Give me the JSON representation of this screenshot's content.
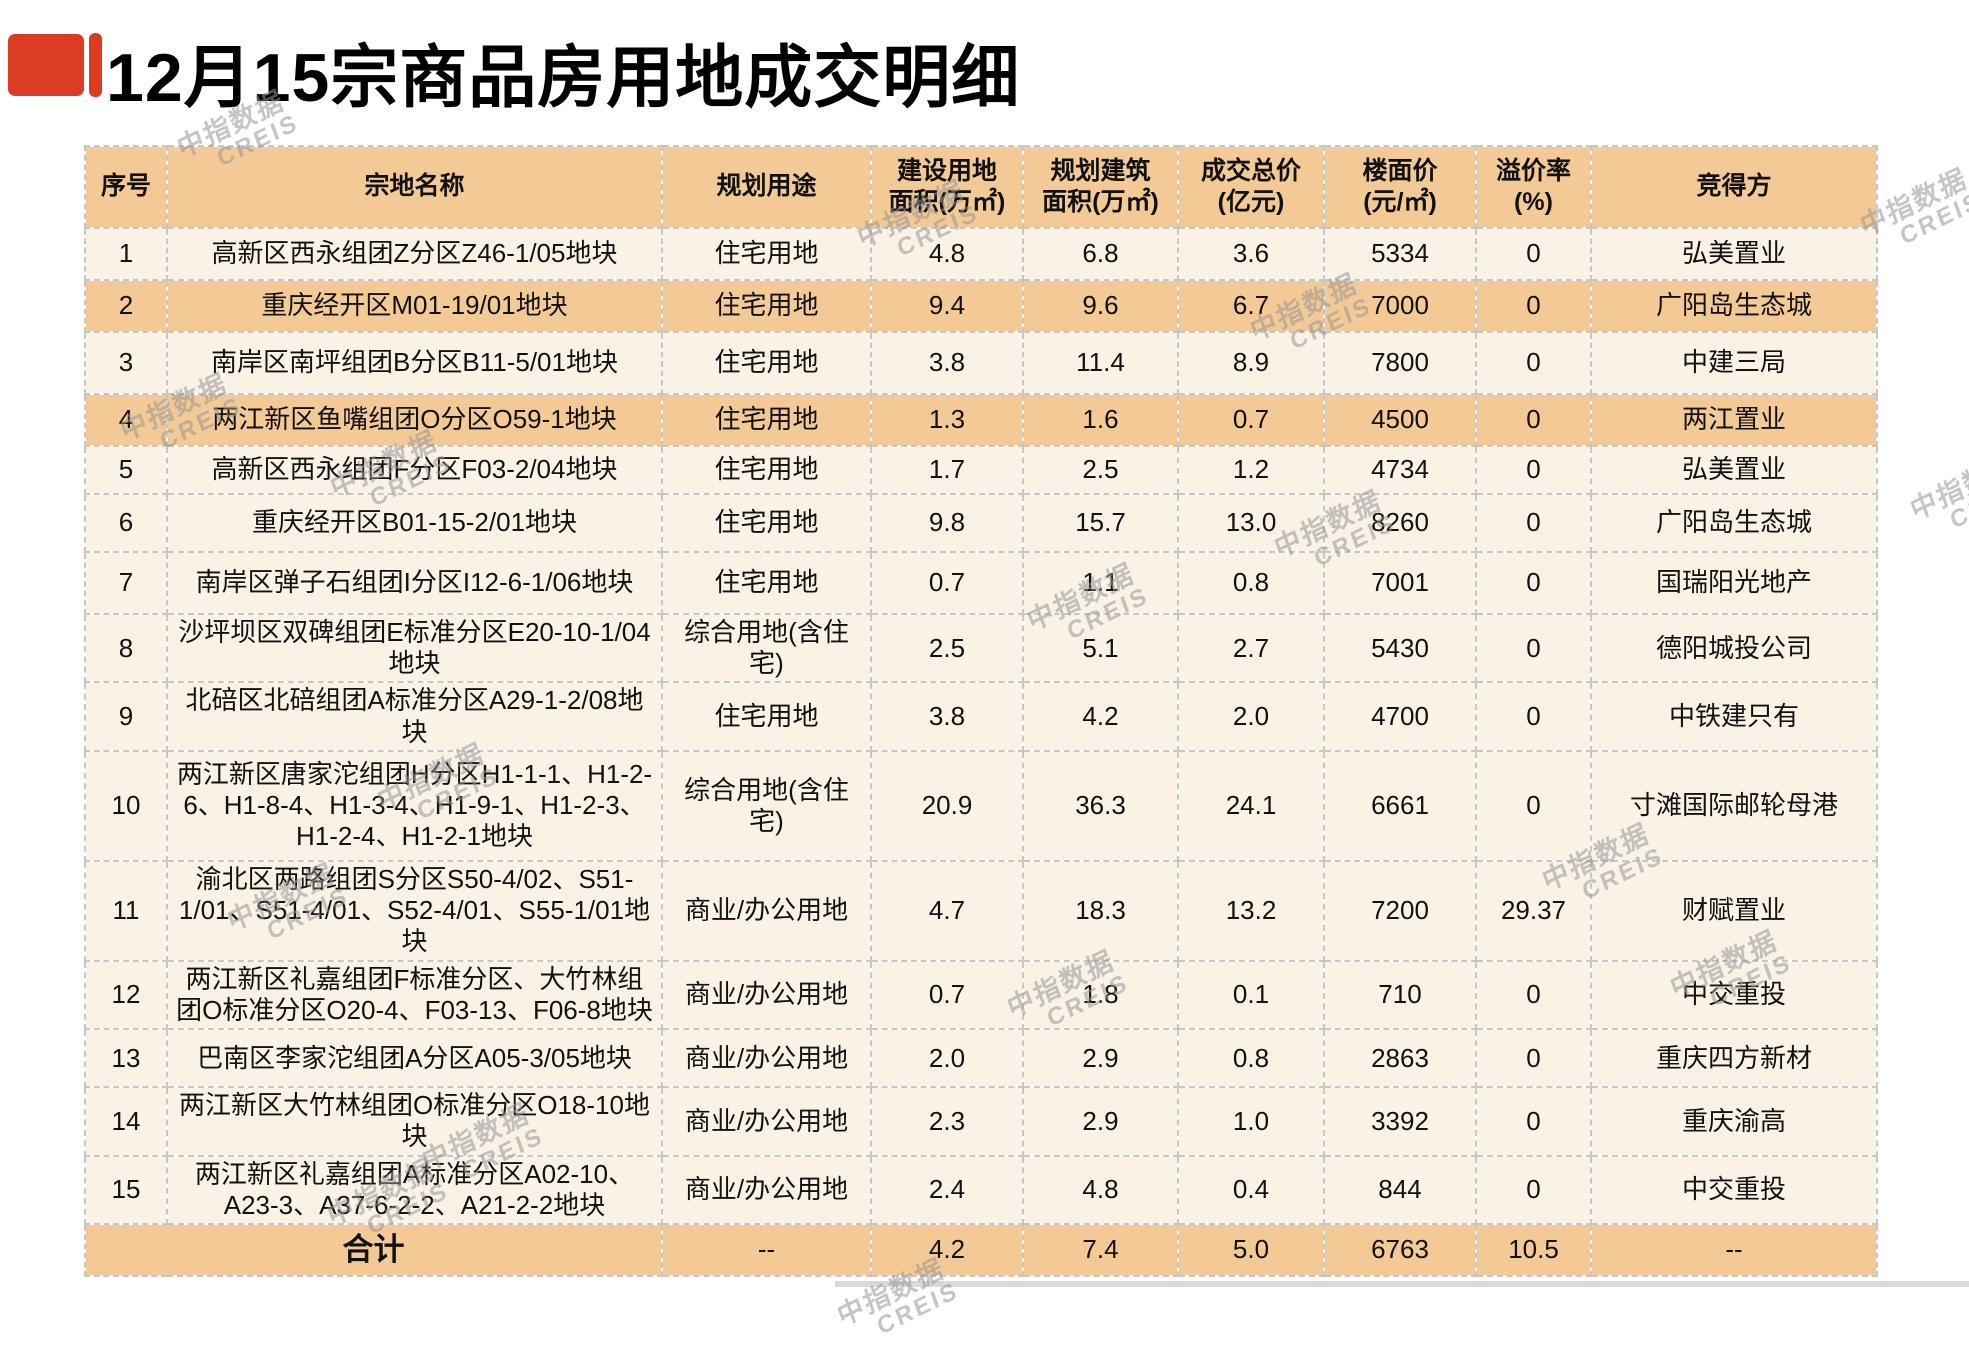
{
  "title": "12月15宗商品房用地成交明细",
  "watermark": {
    "line1": "中指数据",
    "line2": "CREIS"
  },
  "colors": {
    "accent_red": "#dc3c22",
    "header_bg": "#f3ca96",
    "row_light_bg": "#fbf2e6",
    "row_highlight_bg": "#f3ca96",
    "border_dash": "#c7c7c7",
    "bottom_bar": "#d9d9d9",
    "text": "#111111"
  },
  "table": {
    "columns": [
      "序号",
      "宗地名称",
      "规划用途",
      "建设用地\n面积(万㎡)",
      "规划建筑\n面积(万㎡)",
      "成交总价\n(亿元)",
      "楼面价\n(元/㎡)",
      "溢价率\n(%)",
      "竞得方"
    ],
    "rows": [
      {
        "no": "1",
        "name": "高新区西永组团Z分区Z46-1/05地块",
        "use": "住宅用地",
        "land_area": "4.8",
        "build_area": "6.8",
        "price": "3.6",
        "floor_price": "5334",
        "premium": "0",
        "winner": "弘美置业",
        "highlight": false
      },
      {
        "no": "2",
        "name": "重庆经开区M01-19/01地块",
        "use": "住宅用地",
        "land_area": "9.4",
        "build_area": "9.6",
        "price": "6.7",
        "floor_price": "7000",
        "premium": "0",
        "winner": "广阳岛生态城",
        "highlight": true
      },
      {
        "no": "3",
        "name": "南岸区南坪组团B分区B11-5/01地块",
        "use": "住宅用地",
        "land_area": "3.8",
        "build_area": "11.4",
        "price": "8.9",
        "floor_price": "7800",
        "premium": "0",
        "winner": "中建三局",
        "highlight": false
      },
      {
        "no": "4",
        "name": "两江新区鱼嘴组团O分区O59-1地块",
        "use": "住宅用地",
        "land_area": "1.3",
        "build_area": "1.6",
        "price": "0.7",
        "floor_price": "4500",
        "premium": "0",
        "winner": "两江置业",
        "highlight": true
      },
      {
        "no": "5",
        "name": "高新区西永组团F分区F03-2/04地块",
        "use": "住宅用地",
        "land_area": "1.7",
        "build_area": "2.5",
        "price": "1.2",
        "floor_price": "4734",
        "premium": "0",
        "winner": "弘美置业",
        "highlight": false
      },
      {
        "no": "6",
        "name": "重庆经开区B01-15-2/01地块",
        "use": "住宅用地",
        "land_area": "9.8",
        "build_area": "15.7",
        "price": "13.0",
        "floor_price": "8260",
        "premium": "0",
        "winner": "广阳岛生态城",
        "highlight": false
      },
      {
        "no": "7",
        "name": "南岸区弹子石组团I分区I12-6-1/06地块",
        "use": "住宅用地",
        "land_area": "0.7",
        "build_area": "1.1",
        "price": "0.8",
        "floor_price": "7001",
        "premium": "0",
        "winner": "国瑞阳光地产",
        "highlight": false
      },
      {
        "no": "8",
        "name": "沙坪坝区双碑组团E标准分区E20-10-1/04地块",
        "use": "综合用地(含住宅)",
        "land_area": "2.5",
        "build_area": "5.1",
        "price": "2.7",
        "floor_price": "5430",
        "premium": "0",
        "winner": "德阳城投公司",
        "highlight": false
      },
      {
        "no": "9",
        "name": "北碚区北碚组团A标准分区A29-1-2/08地块",
        "use": "住宅用地",
        "land_area": "3.8",
        "build_area": "4.2",
        "price": "2.0",
        "floor_price": "4700",
        "premium": "0",
        "winner": "中铁建只有",
        "highlight": false
      },
      {
        "no": "10",
        "name": "两江新区唐家沱组团H分区H1-1-1、H1-2-6、H1-8-4、H1-3-4、H1-9-1、H1-2-3、H1-2-4、H1-2-1地块",
        "use": "综合用地(含住宅)",
        "land_area": "20.9",
        "build_area": "36.3",
        "price": "24.1",
        "floor_price": "6661",
        "premium": "0",
        "winner": "寸滩国际邮轮母港",
        "highlight": false
      },
      {
        "no": "11",
        "name": "渝北区两路组团S分区S50-4/02、S51-1/01、S51-4/01、S52-4/01、S55-1/01地块",
        "use": "商业/办公用地",
        "land_area": "4.7",
        "build_area": "18.3",
        "price": "13.2",
        "floor_price": "7200",
        "premium": "29.37",
        "winner": "财赋置业",
        "highlight": false
      },
      {
        "no": "12",
        "name": "两江新区礼嘉组团F标准分区、大竹林组团O标准分区O20-4、F03-13、F06-8地块",
        "use": "商业/办公用地",
        "land_area": "0.7",
        "build_area": "1.8",
        "price": "0.1",
        "floor_price": "710",
        "premium": "0",
        "winner": "中交重投",
        "highlight": false
      },
      {
        "no": "13",
        "name": "巴南区李家沱组团A分区A05-3/05地块",
        "use": "商业/办公用地",
        "land_area": "2.0",
        "build_area": "2.9",
        "price": "0.8",
        "floor_price": "2863",
        "premium": "0",
        "winner": "重庆四方新材",
        "highlight": false
      },
      {
        "no": "14",
        "name": "两江新区大竹林组团O标准分区O18-10地块",
        "use": "商业/办公用地",
        "land_area": "2.3",
        "build_area": "2.9",
        "price": "1.0",
        "floor_price": "3392",
        "premium": "0",
        "winner": "重庆渝高",
        "highlight": false
      },
      {
        "no": "15",
        "name": "两江新区礼嘉组团A标准分区A02-10、A23-3、A37-6-2-2、A21-2-2地块",
        "use": "商业/办公用地",
        "land_area": "2.4",
        "build_area": "4.8",
        "price": "0.4",
        "floor_price": "844",
        "premium": "0",
        "winner": "中交重投",
        "highlight": false
      }
    ],
    "total": {
      "label": "合计",
      "use": "--",
      "land_area": "4.2",
      "build_area": "7.4",
      "price": "5.0",
      "floor_price": "6763",
      "premium": "10.5",
      "winner": "--"
    }
  }
}
